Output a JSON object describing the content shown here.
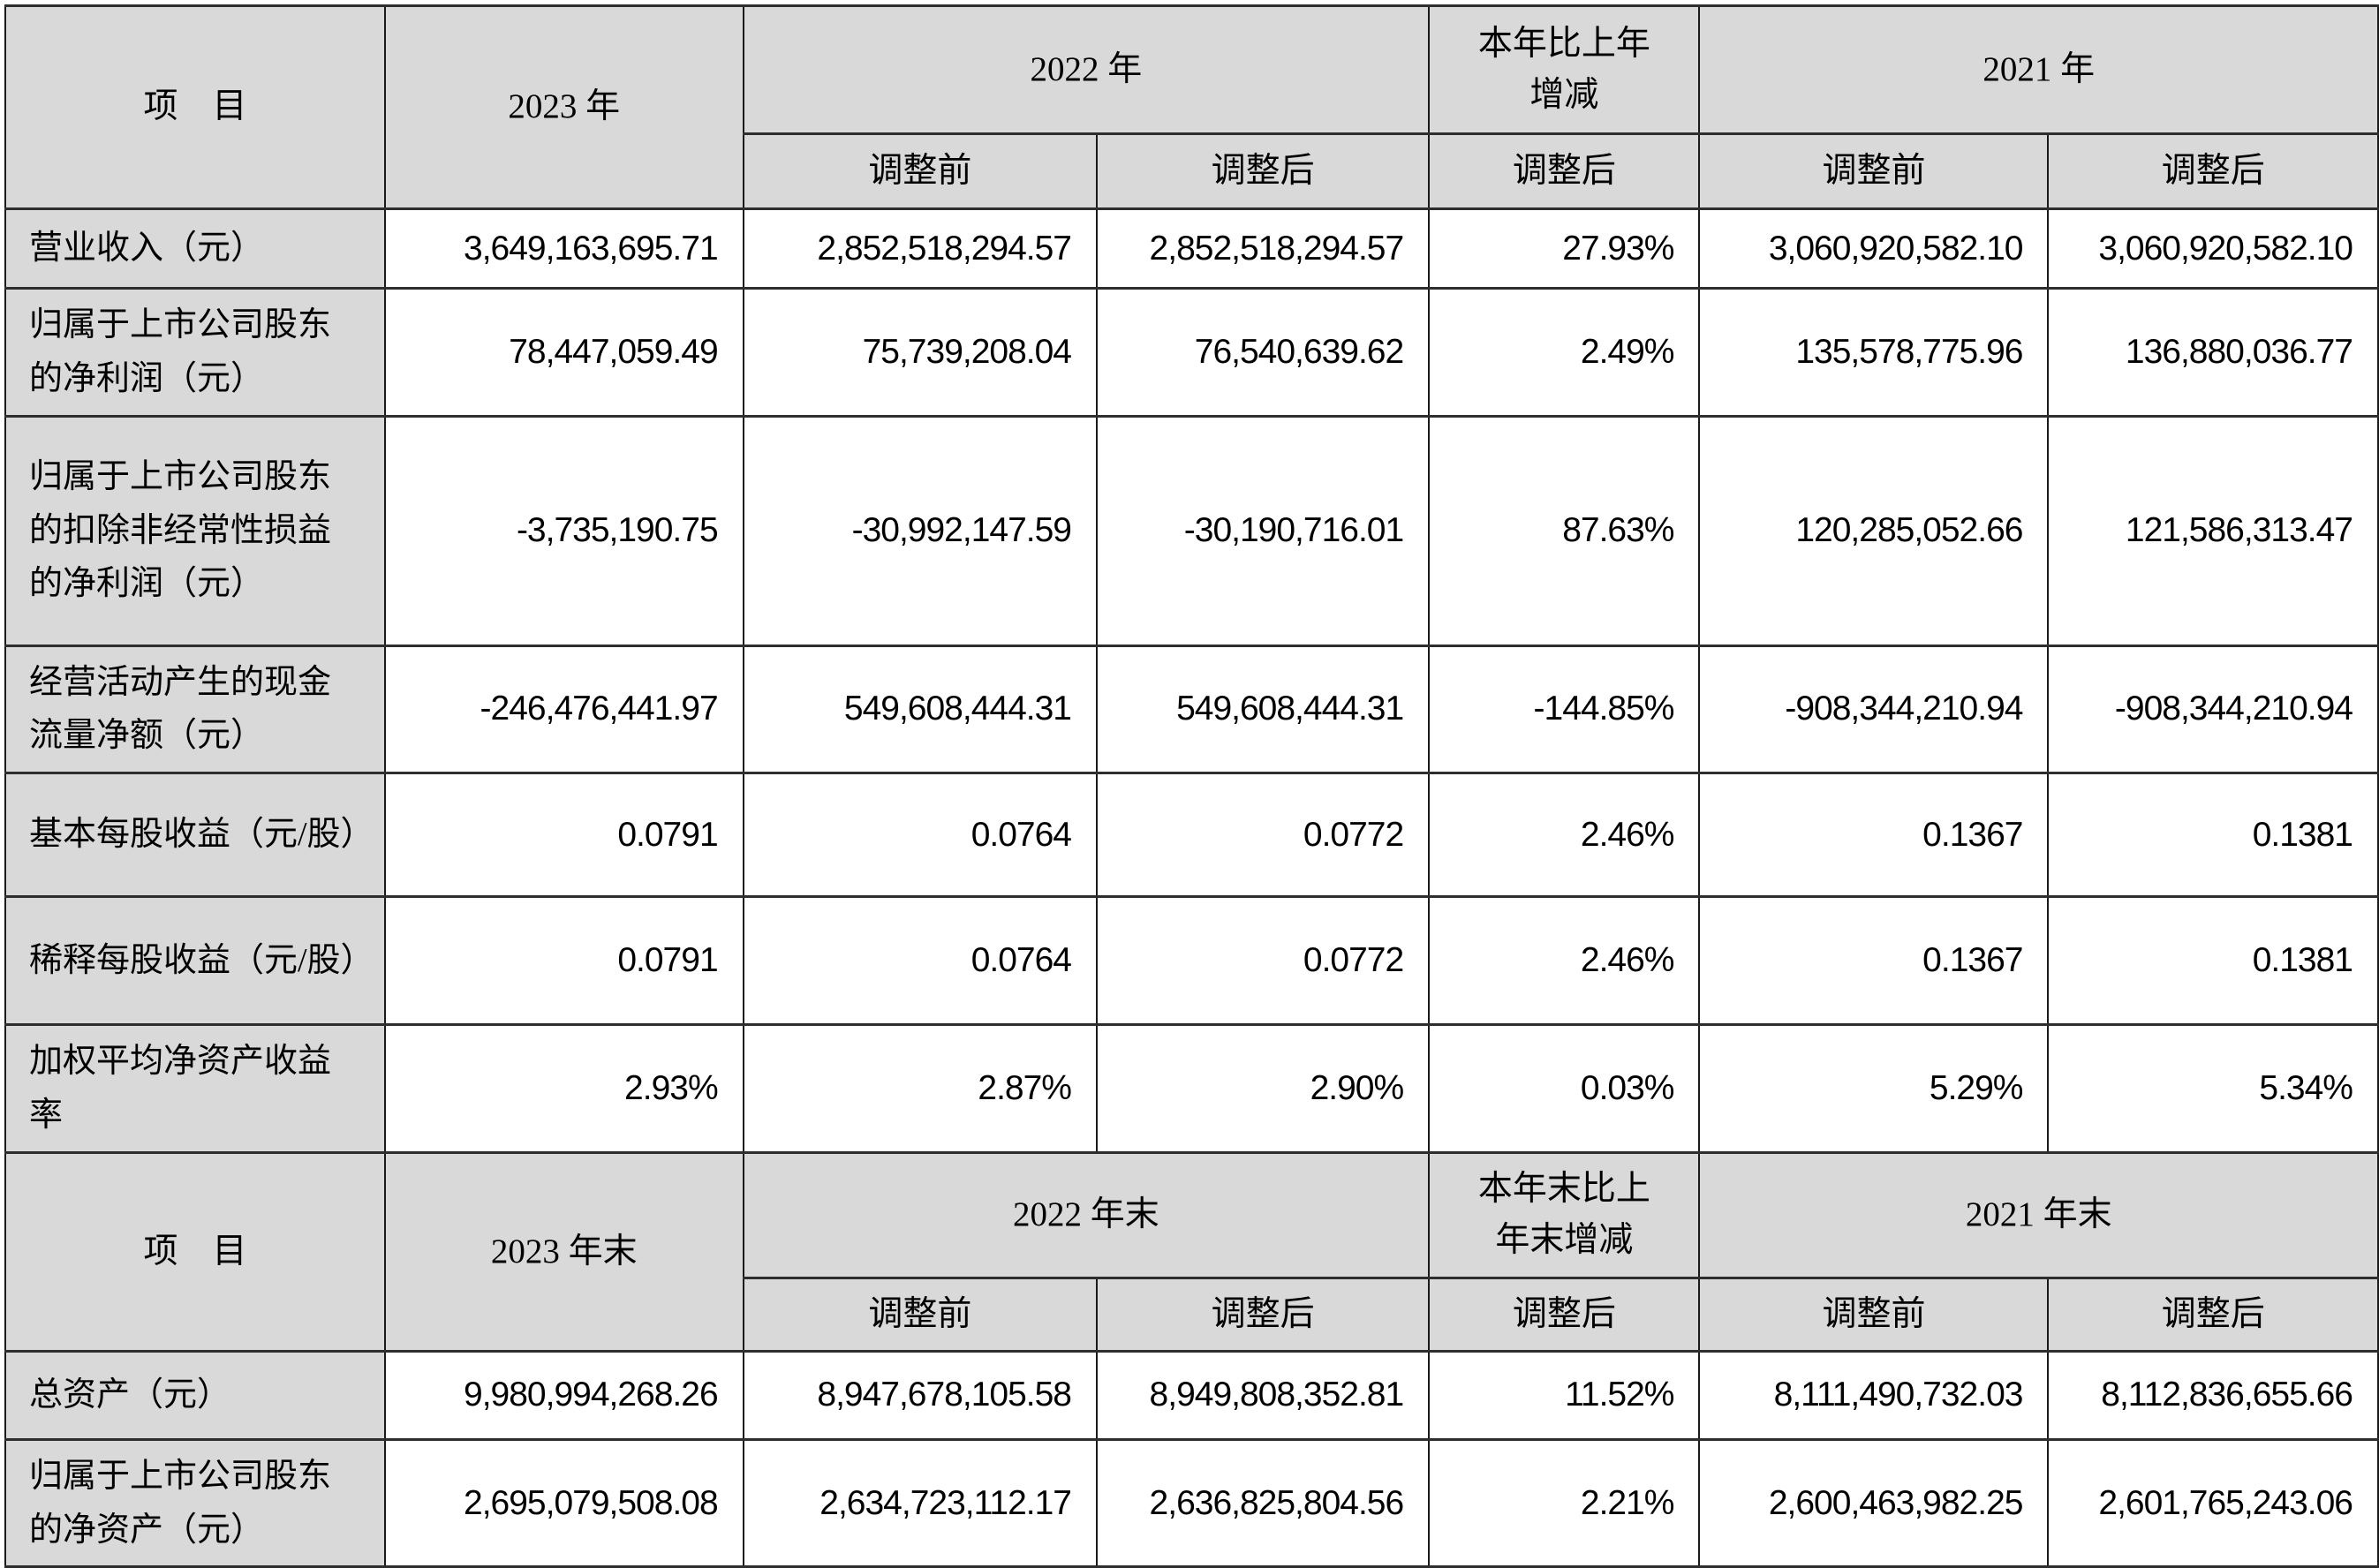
{
  "colors": {
    "header_bg": "#d9d9d9",
    "cell_bg": "#ffffff",
    "border": "#1a1a1a",
    "text": "#000000"
  },
  "sections": [
    {
      "header": {
        "item_label": "项　目",
        "year_current": "2023 年",
        "year_prev": "2022 年",
        "change_label": "本年比上年\n增减",
        "year_prev2": "2021 年",
        "adj_before": "调整前",
        "adj_after": "调整后",
        "adj_change": "调整后"
      },
      "rows": [
        {
          "label": "营业收入（元）",
          "values": [
            "3,649,163,695.71",
            "2,852,518,294.57",
            "2,852,518,294.57",
            "27.93%",
            "3,060,920,582.10",
            "3,060,920,582.10"
          ]
        },
        {
          "label": "归属于上市公司股东的净利润（元）",
          "values": [
            "78,447,059.49",
            "75,739,208.04",
            "76,540,639.62",
            "2.49%",
            "135,578,775.96",
            "136,880,036.77"
          ]
        },
        {
          "label": "归属于上市公司股东的扣除非经常性损益的净利润（元）",
          "values": [
            "-3,735,190.75",
            "-30,992,147.59",
            "-30,190,716.01",
            "87.63%",
            "120,285,052.66",
            "121,586,313.47"
          ]
        },
        {
          "label": "经营活动产生的现金流量净额（元）",
          "values": [
            "-246,476,441.97",
            "549,608,444.31",
            "549,608,444.31",
            "-144.85%",
            "-908,344,210.94",
            "-908,344,210.94"
          ]
        },
        {
          "label": "基本每股收益（元/股）",
          "values": [
            "0.0791",
            "0.0764",
            "0.0772",
            "2.46%",
            "0.1367",
            "0.1381"
          ]
        },
        {
          "label": "稀释每股收益（元/股）",
          "values": [
            "0.0791",
            "0.0764",
            "0.0772",
            "2.46%",
            "0.1367",
            "0.1381"
          ]
        },
        {
          "label": "加权平均净资产收益率",
          "values": [
            "2.93%",
            "2.87%",
            "2.90%",
            "0.03%",
            "5.29%",
            "5.34%"
          ]
        }
      ]
    },
    {
      "header": {
        "item_label": "项　目",
        "year_current": "2023 年末",
        "year_prev": "2022 年末",
        "change_label": "本年末比上\n年末增减",
        "year_prev2": "2021 年末",
        "adj_before": "调整前",
        "adj_after": "调整后",
        "adj_change": "调整后"
      },
      "rows": [
        {
          "label": "总资产（元）",
          "values": [
            "9,980,994,268.26",
            "8,947,678,105.58",
            "8,949,808,352.81",
            "11.52%",
            "8,111,490,732.03",
            "8,112,836,655.66"
          ]
        },
        {
          "label": "归属于上市公司股东的净资产（元）",
          "values": [
            "2,695,079,508.08",
            "2,634,723,112.17",
            "2,636,825,804.56",
            "2.21%",
            "2,600,463,982.25",
            "2,601,765,243.06"
          ]
        }
      ]
    }
  ]
}
